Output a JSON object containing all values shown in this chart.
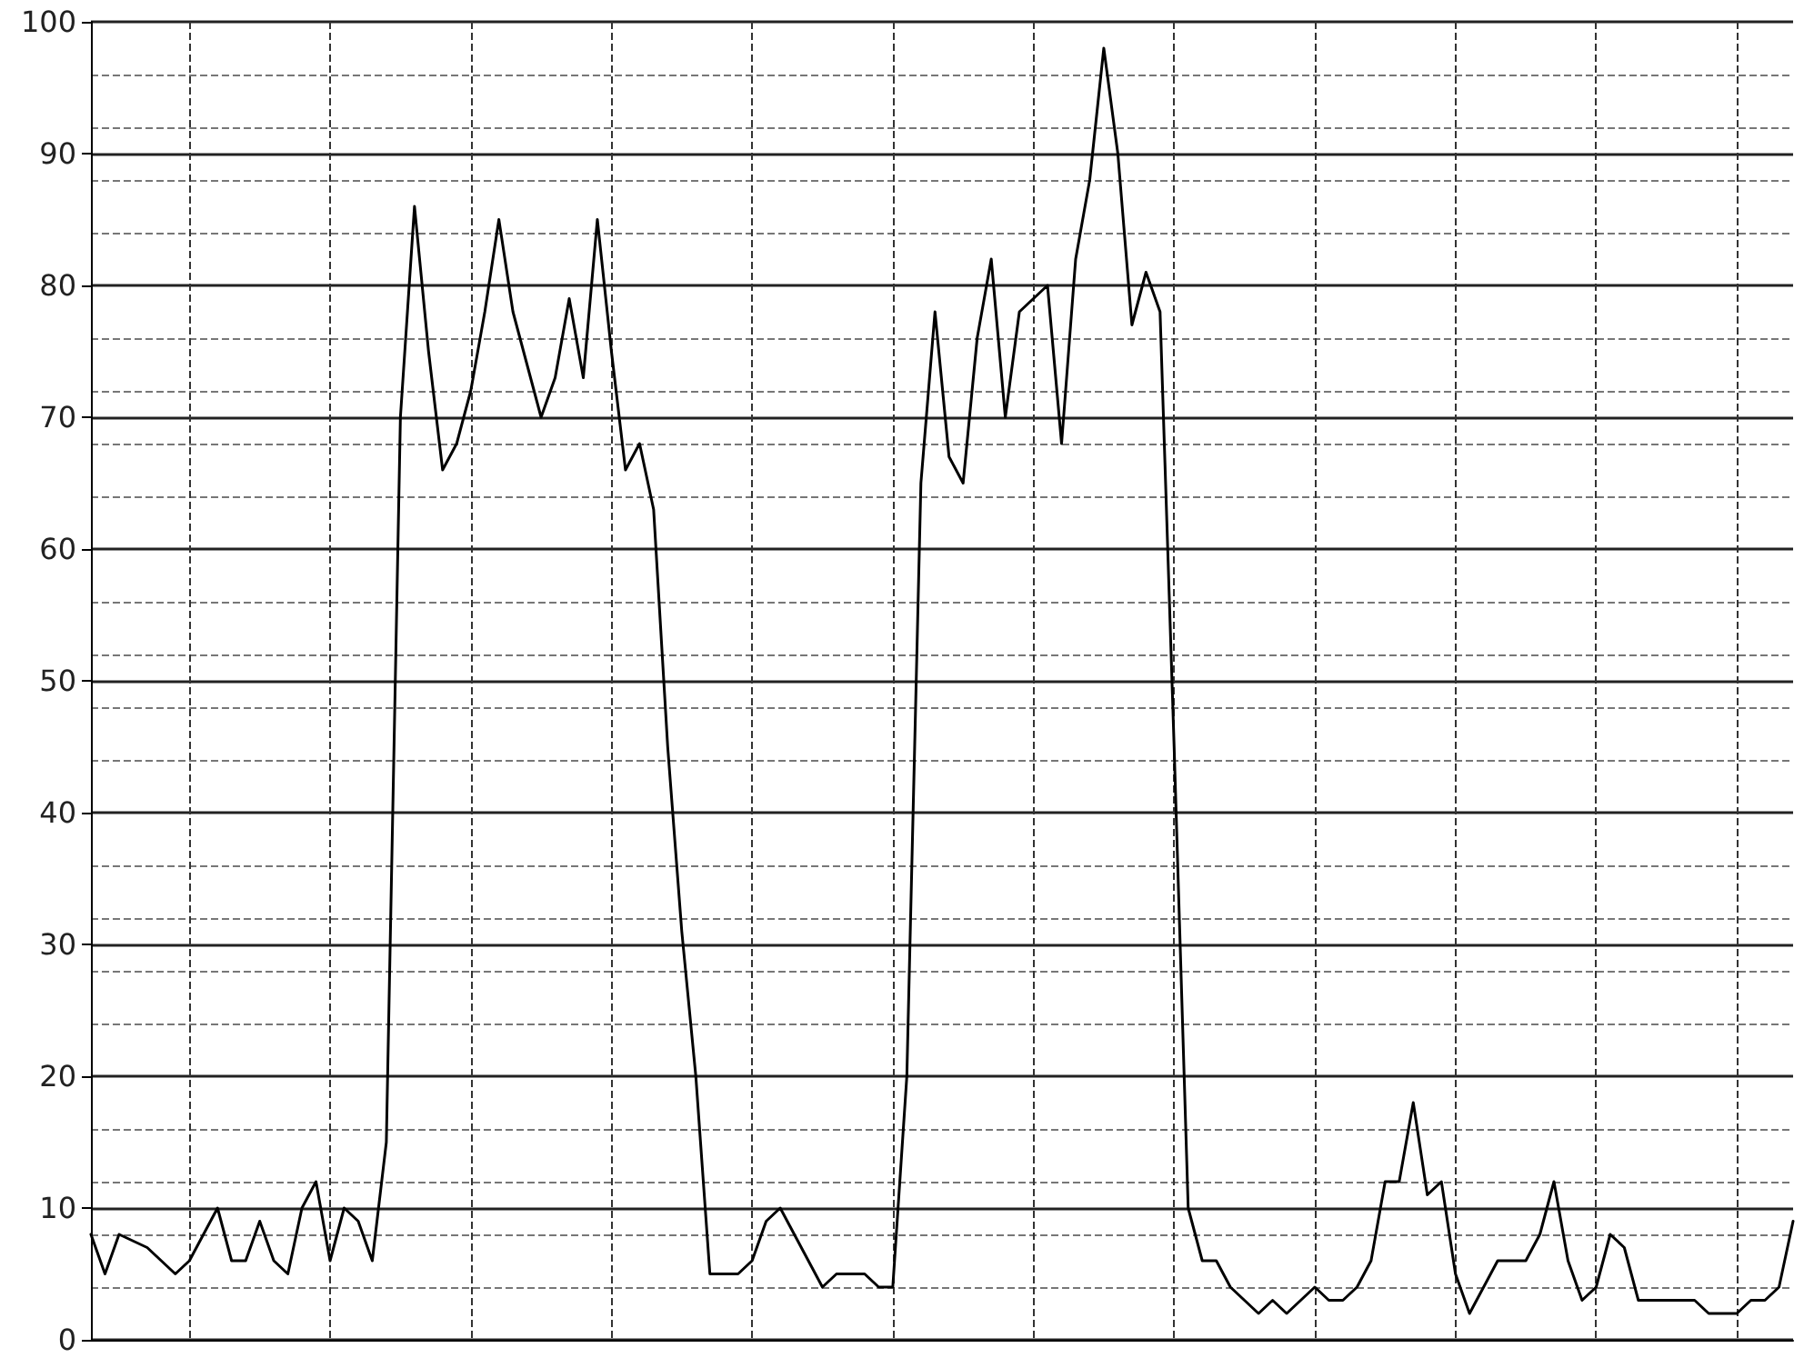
{
  "chart_data": {
    "type": "line",
    "categories": [
      null,
      null,
      null,
      null,
      null,
      null,
      null,
      null,
      null,
      null,
      null,
      null,
      null,
      null,
      null,
      null,
      null,
      null,
      null,
      null,
      null,
      null,
      null,
      null,
      null,
      null,
      null,
      null,
      null,
      null,
      null,
      null,
      null,
      null,
      null,
      null,
      null,
      null,
      null,
      null,
      null,
      null,
      null,
      null,
      null,
      null,
      null,
      null,
      null,
      null,
      null,
      null,
      null,
      null,
      null,
      null,
      null,
      null,
      null,
      null,
      null,
      null,
      null,
      null,
      null,
      null,
      null,
      null,
      null,
      null,
      null,
      null,
      null,
      null,
      null,
      null,
      null,
      null,
      null,
      null,
      null,
      null,
      null,
      null,
      null,
      null,
      null,
      null,
      null,
      null,
      null,
      null,
      null,
      null,
      null,
      null,
      null,
      null,
      null,
      null,
      null,
      null,
      null,
      null,
      null,
      null,
      null,
      null,
      null,
      null,
      null,
      null,
      null,
      null,
      null,
      null,
      null,
      null,
      null,
      null,
      null,
      null
    ],
    "series": [
      {
        "color": "#000000",
        "values": [
          8,
          5,
          8,
          7.5,
          7,
          6,
          5,
          6,
          8,
          10,
          6,
          6,
          9,
          6,
          5,
          10,
          12,
          6,
          10,
          9,
          6,
          15,
          70,
          86,
          75,
          66,
          68,
          72,
          78,
          85,
          78,
          74,
          70,
          73,
          79,
          73,
          85,
          75,
          66,
          68,
          63,
          45,
          31,
          20,
          5,
          5,
          5,
          6,
          9,
          10,
          8,
          6,
          4,
          5,
          5,
          5,
          4,
          4,
          20,
          65,
          78,
          67,
          65,
          76,
          82,
          70,
          78,
          79,
          80,
          68,
          82,
          88,
          98,
          90,
          77,
          81,
          78,
          45,
          10,
          6,
          6,
          4,
          3,
          2,
          3,
          2,
          3,
          4,
          3,
          3,
          4,
          6,
          12,
          12,
          18,
          11,
          12,
          5,
          2,
          4,
          6,
          6,
          6,
          8,
          12,
          6,
          3,
          4,
          8,
          7,
          3,
          3,
          3,
          3,
          3,
          2,
          2,
          2,
          3,
          3,
          4,
          9
        ]
      }
    ],
    "ylim": [
      0,
      100
    ],
    "yticks": [
      0,
      10,
      20,
      30,
      40,
      50,
      60,
      70,
      80,
      90,
      100
    ],
    "grid": true,
    "marker": "none",
    "line_style": "solid",
    "tick_labels": "y"
  }
}
